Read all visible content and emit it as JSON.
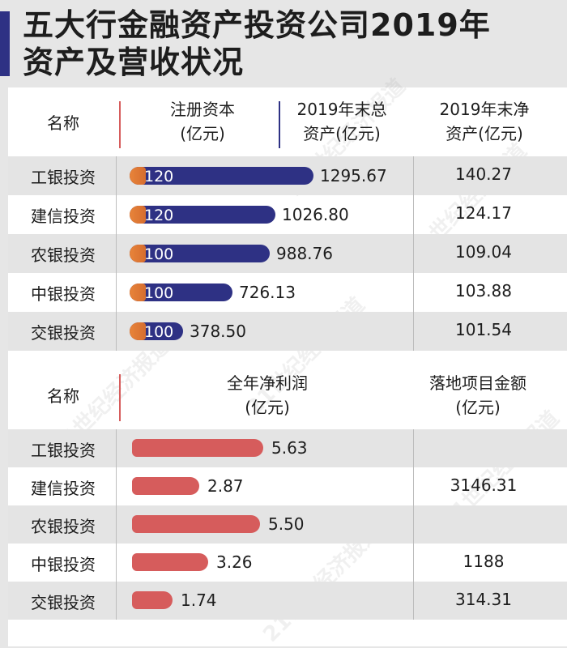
{
  "title": {
    "line1": "五大行金融资产投资公司2019年",
    "line2": "资产及营收状况"
  },
  "watermark": "21世纪经济报道",
  "colors": {
    "accent": "#2e3184",
    "capital_bar": "#2e3184",
    "capital_tip": "#e8843a",
    "profit_bar": "#d65c5c",
    "sep_red": "#d65c5c",
    "sep_blue": "#2e3184"
  },
  "table1": {
    "headers": {
      "name": "名称",
      "capital_line1": "注册资本",
      "capital_line2": "(亿元)",
      "assets_line1": "2019年末总",
      "assets_line2": "资产(亿元)",
      "net_line1": "2019年末净",
      "net_line2": "资产(亿元)"
    }
  },
  "table2": {
    "headers": {
      "name": "名称",
      "profit_line1": "全年净利润",
      "profit_line2": "(亿元)",
      "project_line1": "落地项目金额",
      "project_line2": "(亿元)"
    }
  },
  "chart_data": [
    {
      "type": "bar",
      "title": "2019年末总资产(亿元) / 注册资本(亿元)",
      "categories": [
        "工银投资",
        "建信投资",
        "农银投资",
        "中银投资",
        "交银投资"
      ],
      "series": [
        {
          "name": "注册资本(亿元)",
          "values": [
            120,
            120,
            100,
            100,
            100
          ],
          "labels": [
            "120",
            "120",
            "100",
            "100",
            "100"
          ]
        },
        {
          "name": "2019年末总资产(亿元)",
          "values": [
            1295.67,
            1026.8,
            988.76,
            726.13,
            378.5
          ],
          "labels": [
            "1295.67",
            "1026.80",
            "988.76",
            "726.13",
            "378.50"
          ]
        },
        {
          "name": "2019年末净资产(亿元)",
          "values": [
            140.27,
            124.17,
            109.04,
            103.88,
            101.54
          ],
          "labels": [
            "140.27",
            "124.17",
            "109.04",
            "103.88",
            "101.54"
          ]
        }
      ]
    },
    {
      "type": "bar",
      "title": "全年净利润(亿元) / 落地项目金额(亿元)",
      "categories": [
        "工银投资",
        "建信投资",
        "农银投资",
        "中银投资",
        "交银投资"
      ],
      "series": [
        {
          "name": "全年净利润(亿元)",
          "values": [
            5.63,
            2.87,
            5.5,
            3.26,
            1.74
          ],
          "labels": [
            "5.63",
            "2.87",
            "5.50",
            "3.26",
            "1.74"
          ]
        },
        {
          "name": "落地项目金额(亿元)",
          "values": [
            null,
            3146.31,
            null,
            1188,
            314.31
          ],
          "labels": [
            "",
            "3146.31",
            "",
            "1188",
            "314.31"
          ]
        }
      ]
    }
  ]
}
